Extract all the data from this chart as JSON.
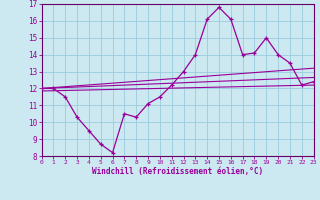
{
  "xlabel": "Windchill (Refroidissement éolien,°C)",
  "background_color": "#cce8f0",
  "grid_color": "#99ccdd",
  "line_color": "#990099",
  "spine_color": "#660066",
  "x_values": [
    0,
    1,
    2,
    3,
    4,
    5,
    6,
    7,
    8,
    9,
    10,
    11,
    12,
    13,
    14,
    15,
    16,
    17,
    18,
    19,
    20,
    21,
    22,
    23
  ],
  "y_main": [
    12,
    12,
    11.5,
    10.3,
    9.5,
    8.7,
    8.2,
    10.5,
    10.3,
    11.1,
    11.5,
    12.2,
    13.0,
    14.0,
    16.1,
    16.8,
    16.1,
    14.0,
    14.1,
    15.0,
    14.0,
    13.5,
    12.2,
    12.4
  ],
  "ylim": [
    8,
    17
  ],
  "xlim": [
    0,
    23
  ],
  "yticks": [
    8,
    9,
    10,
    11,
    12,
    13,
    14,
    15,
    16,
    17
  ],
  "xticks": [
    0,
    1,
    2,
    3,
    4,
    5,
    6,
    7,
    8,
    9,
    10,
    11,
    12,
    13,
    14,
    15,
    16,
    17,
    18,
    19,
    20,
    21,
    22,
    23
  ],
  "regression_lines": [
    {
      "x_start": 0,
      "y_start": 12.0,
      "x_end": 23,
      "y_end": 13.2
    },
    {
      "x_start": 0,
      "y_start": 12.0,
      "x_end": 23,
      "y_end": 12.65
    },
    {
      "x_start": 0,
      "y_start": 11.85,
      "x_end": 23,
      "y_end": 12.2
    }
  ]
}
